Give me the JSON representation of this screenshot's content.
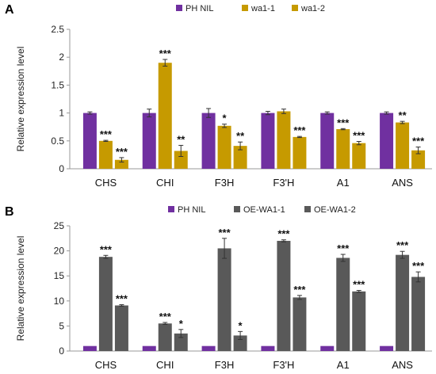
{
  "chart_data": [
    {
      "panel_label": "A",
      "type": "bar",
      "categories": [
        "CHS",
        "CHI",
        "F3H",
        "F3'H",
        "A1",
        "ANS"
      ],
      "ylabel": "Relative expression level",
      "ylim": [
        0,
        2.5
      ],
      "yticks": [
        "0",
        "0.5",
        "1",
        "1.5",
        "2",
        "2.5"
      ],
      "ytick_values": [
        0,
        0.5,
        1,
        1.5,
        2,
        2.5
      ],
      "legend_position": "top",
      "series": [
        {
          "name": "PH NIL",
          "color": "#7030a0",
          "values": [
            1.0,
            1.0,
            1.0,
            1.0,
            1.0,
            1.0
          ],
          "errors": [
            0.02,
            0.07,
            0.08,
            0.03,
            0.02,
            0.02
          ],
          "sig": [
            "",
            "",
            "",
            "",
            "",
            ""
          ]
        },
        {
          "name": "wa1-1",
          "color": "#c69a00",
          "values": [
            0.5,
            1.9,
            0.77,
            1.03,
            0.71,
            0.83
          ],
          "errors": [
            0.01,
            0.06,
            0.03,
            0.04,
            0.01,
            0.02
          ],
          "sig": [
            "***",
            "***",
            "*",
            "",
            "***",
            "**"
          ]
        },
        {
          "name": "wa1-2",
          "color": "#c69a00",
          "values": [
            0.16,
            0.32,
            0.41,
            0.57,
            0.46,
            0.33
          ],
          "errors": [
            0.04,
            0.1,
            0.07,
            0.01,
            0.03,
            0.06
          ],
          "sig": [
            "***",
            "**",
            "**",
            "***",
            "***",
            "***"
          ]
        }
      ]
    },
    {
      "panel_label": "B",
      "type": "bar",
      "categories": [
        "CHS",
        "CHI",
        "F3H",
        "F3'H",
        "A1",
        "ANS"
      ],
      "ylabel": "Relative expression level",
      "ylim": [
        0,
        25
      ],
      "yticks": [
        "0",
        "5",
        "10",
        "15",
        "20",
        "25"
      ],
      "ytick_values": [
        0,
        5,
        10,
        15,
        20,
        25
      ],
      "legend_position": "top",
      "series": [
        {
          "name": "PH NIL",
          "color": "#7030a0",
          "values": [
            1.0,
            1.0,
            1.0,
            1.0,
            1.0,
            1.0
          ],
          "errors": [
            0,
            0,
            0,
            0,
            0,
            0
          ],
          "sig": [
            "",
            "",
            "",
            "",
            "",
            ""
          ]
        },
        {
          "name": "OE-WA1-1",
          "color": "#595959",
          "values": [
            18.8,
            5.5,
            20.5,
            22.0,
            18.6,
            19.2
          ],
          "errors": [
            0.3,
            0.2,
            2.0,
            0.2,
            0.7,
            0.7
          ],
          "sig": [
            "***",
            "***",
            "***",
            "***",
            "***",
            "***"
          ]
        },
        {
          "name": "OE-WA1-2",
          "color": "#595959",
          "values": [
            9.1,
            3.5,
            3.1,
            10.7,
            11.9,
            14.8
          ],
          "errors": [
            0.15,
            0.8,
            0.8,
            0.4,
            0.2,
            1.0
          ],
          "sig": [
            "***",
            "*",
            "*",
            "***",
            "***",
            "***"
          ]
        }
      ]
    }
  ]
}
